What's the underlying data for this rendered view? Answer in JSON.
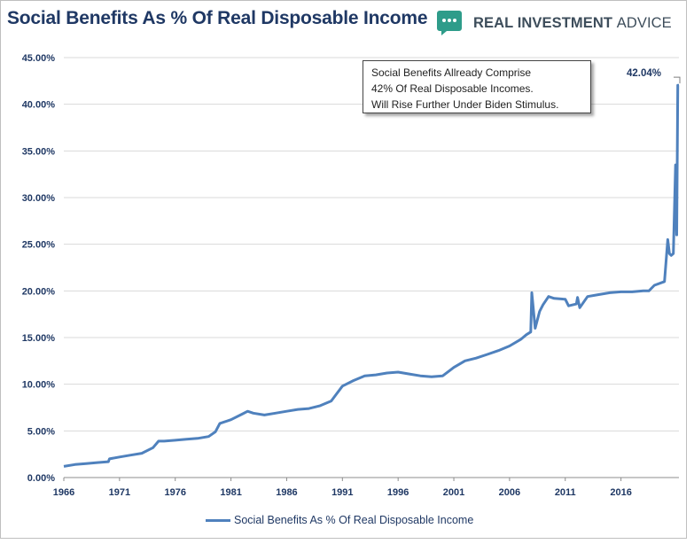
{
  "title": "Social Benefits As % Of Real Disposable Income",
  "logo": {
    "icon": "speech-bubble-icon",
    "text_bold": "REAL INVESTMENT",
    "text_light": "ADVICE",
    "color": "#2e9c8a"
  },
  "annotation": {
    "lines": [
      "Social Benefits Allready Comprise",
      "42% Of Real Disposable Incomes.",
      "Will Rise Further Under Biden Stimulus."
    ]
  },
  "chart_data": {
    "type": "line",
    "title": "Social Benefits As % Of Real Disposable Income",
    "xlabel": "",
    "ylabel": "",
    "xlim": [
      1966,
      2021.2
    ],
    "ylim": [
      0,
      45
    ],
    "grid": true,
    "legend_position": "bottom",
    "line_color": "#4f81bd",
    "y_ticks": [
      "0.00%",
      "5.00%",
      "10.00%",
      "15.00%",
      "20.00%",
      "25.00%",
      "30.00%",
      "35.00%",
      "40.00%",
      "45.00%"
    ],
    "x_ticks": [
      "1966",
      "1971",
      "1976",
      "1981",
      "1986",
      "1991",
      "1996",
      "2001",
      "2006",
      "2011",
      "2016"
    ],
    "end_label": "42.04%",
    "series": [
      {
        "name": "Social Benefits As % Of Real Disposable Income",
        "x": [
          1966.0,
          1967.0,
          1968.0,
          1969.0,
          1970.0,
          1970.1,
          1971.0,
          1972.0,
          1973.0,
          1974.0,
          1974.5,
          1975.0,
          1976.0,
          1977.0,
          1978.0,
          1979.0,
          1979.6,
          1980.0,
          1981.0,
          1982.0,
          1982.5,
          1983.0,
          1984.0,
          1985.0,
          1986.0,
          1987.0,
          1988.0,
          1989.0,
          1990.0,
          1991.0,
          1992.0,
          1993.0,
          1994.0,
          1995.0,
          1996.0,
          1997.0,
          1998.0,
          1999.0,
          2000.0,
          2001.0,
          2002.0,
          2003.0,
          2004.0,
          2005.0,
          2006.0,
          2007.0,
          2007.5,
          2007.9,
          2008.0,
          2008.3,
          2008.7,
          2009.0,
          2009.5,
          2010.0,
          2011.0,
          2011.3,
          2012.0,
          2012.1,
          2012.3,
          2013.0,
          2014.0,
          2015.0,
          2016.0,
          2017.0,
          2018.0,
          2018.5,
          2019.0,
          2019.9,
          2020.2,
          2020.35,
          2020.5,
          2020.7,
          2020.9,
          2021.0,
          2021.1,
          2021.2
        ],
        "values": [
          1.2,
          1.4,
          1.5,
          1.6,
          1.7,
          2.0,
          2.2,
          2.4,
          2.6,
          3.2,
          3.9,
          3.9,
          4.0,
          4.1,
          4.2,
          4.4,
          4.9,
          5.8,
          6.2,
          6.8,
          7.1,
          6.9,
          6.7,
          6.9,
          7.1,
          7.3,
          7.4,
          7.7,
          8.2,
          9.8,
          10.4,
          10.9,
          11.0,
          11.2,
          11.3,
          11.1,
          10.9,
          10.8,
          10.9,
          11.8,
          12.5,
          12.8,
          13.2,
          13.6,
          14.1,
          14.8,
          15.3,
          15.6,
          19.8,
          16.0,
          17.8,
          18.5,
          19.4,
          19.2,
          19.1,
          18.4,
          18.6,
          19.3,
          18.2,
          19.4,
          19.6,
          19.8,
          19.9,
          19.9,
          20.0,
          20.0,
          20.6,
          21.0,
          25.5,
          24.0,
          23.8,
          24.0,
          33.5,
          26.0,
          42.04,
          42.04
        ]
      }
    ]
  }
}
